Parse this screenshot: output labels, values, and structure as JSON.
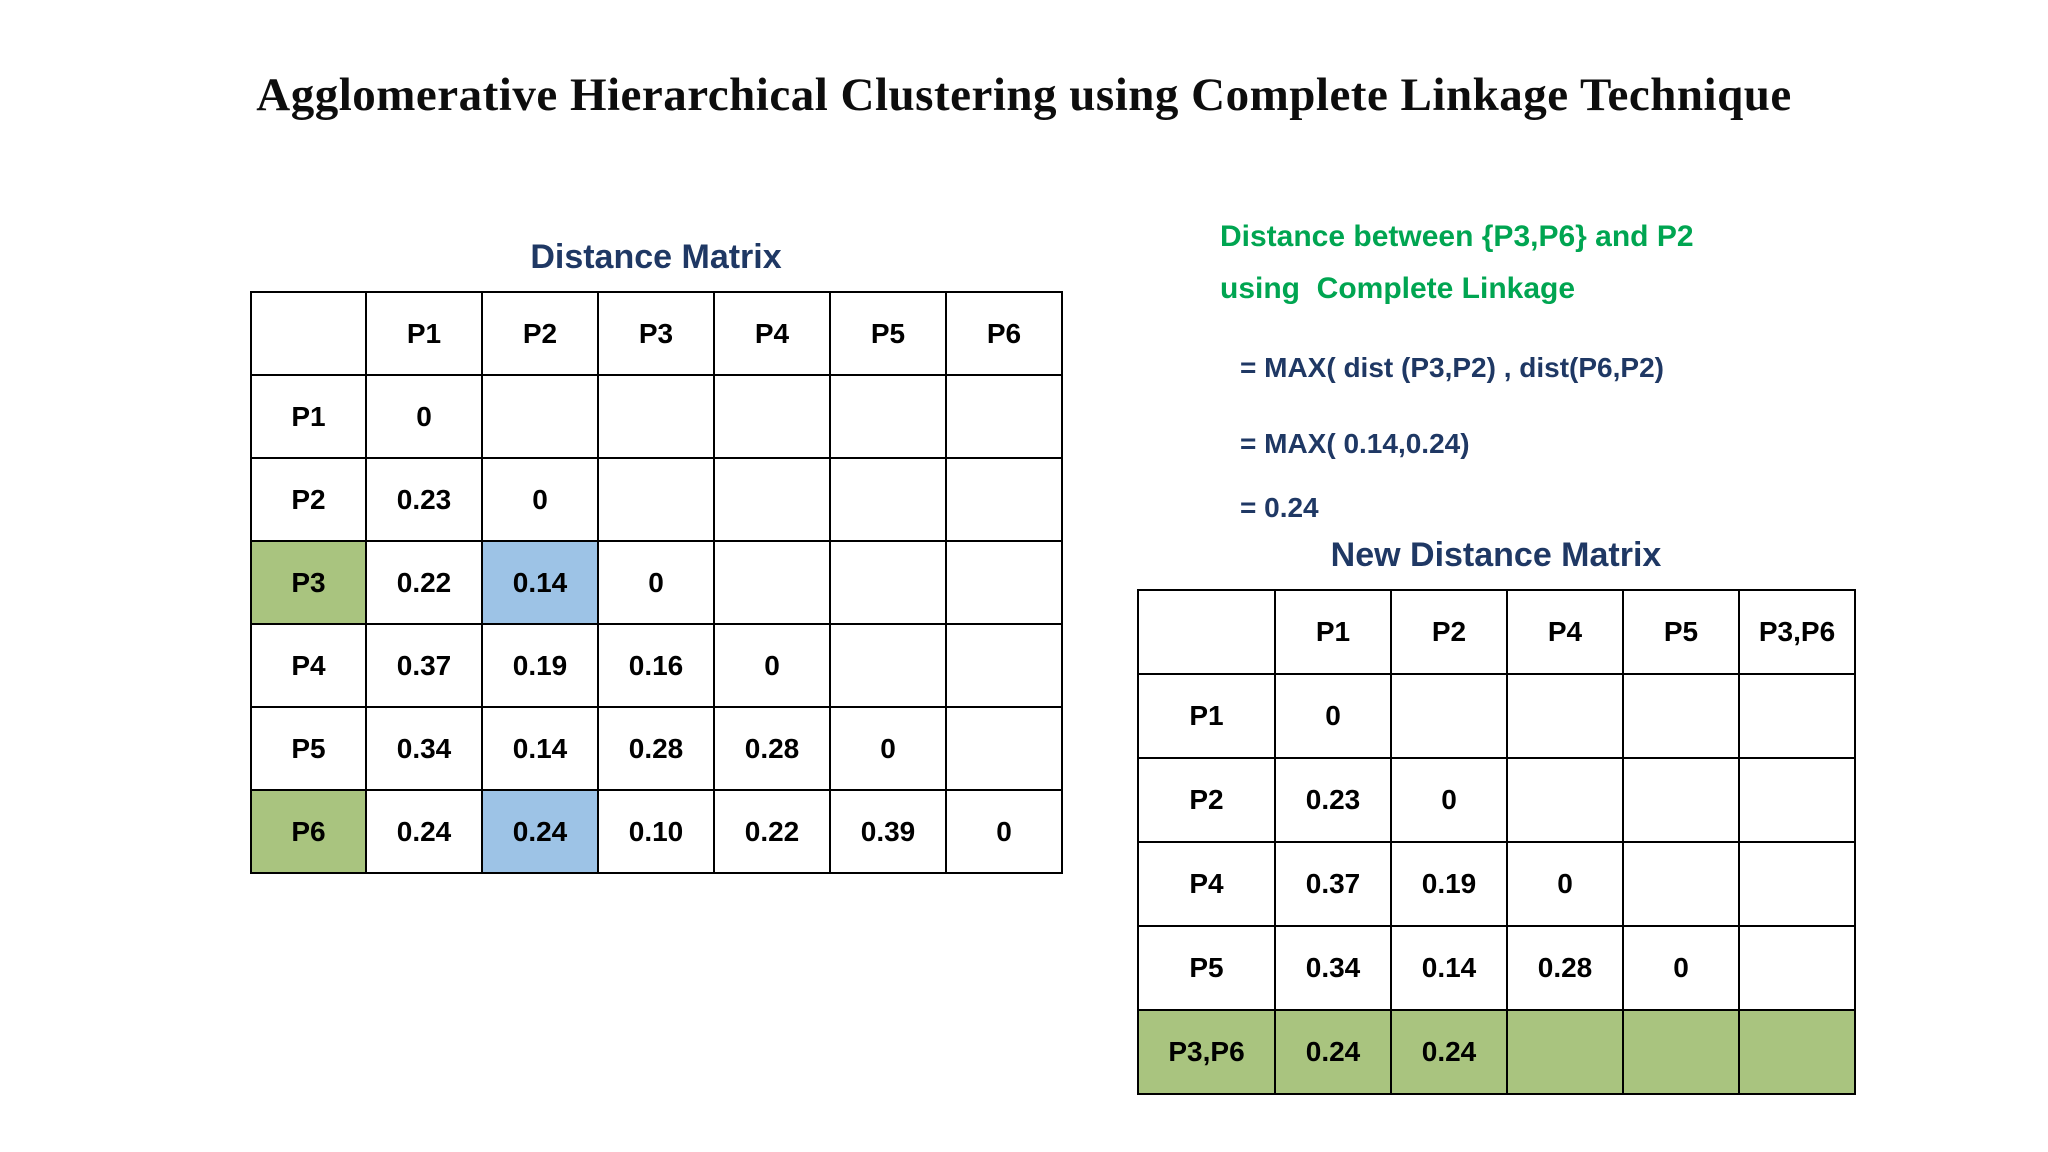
{
  "title": "Agglomerative Hierarchical Clustering using Complete Linkage Technique",
  "colors": {
    "navy": "#1f3864",
    "green_text": "#00a551",
    "green_fill": "#a9c47f",
    "blue_fill": "#9dc3e6",
    "red_text": "#ff0000"
  },
  "annotation": {
    "line1": "Distance between {P3,P6} and P2",
    "line2": "using  Complete Linkage",
    "formula1": "= MAX( dist (P3,P2) , dist(P6,P2)",
    "formula2": "= MAX( 0.14,0.24)",
    "formula3": "= 0.24"
  },
  "left_matrix": {
    "title": "Distance Matrix",
    "headers": [
      "",
      "P1",
      "P2",
      "P3",
      "P4",
      "P5",
      "P6"
    ],
    "rows": [
      {
        "label": "P1",
        "cells": [
          {
            "t": "0"
          },
          {},
          {},
          {},
          {},
          {}
        ]
      },
      {
        "label": "P2",
        "cells": [
          {
            "t": "0.23"
          },
          {
            "t": "0"
          },
          {},
          {},
          {},
          {}
        ]
      },
      {
        "label": "P3",
        "label_hl": "green",
        "cells": [
          {
            "t": "0.22"
          },
          {
            "t": "0.14",
            "hl": "blue"
          },
          {
            "t": "0"
          },
          {},
          {},
          {}
        ]
      },
      {
        "label": "P4",
        "cells": [
          {
            "t": "0.37"
          },
          {
            "t": "0.19"
          },
          {
            "t": "0.16"
          },
          {
            "t": "0"
          },
          {},
          {}
        ]
      },
      {
        "label": "P5",
        "cells": [
          {
            "t": "0.34"
          },
          {
            "t": "0.14"
          },
          {
            "t": "0.28"
          },
          {
            "t": "0.28"
          },
          {
            "t": "0"
          },
          {}
        ]
      },
      {
        "label": "P6",
        "label_hl": "green",
        "cells": [
          {
            "t": "0.24"
          },
          {
            "t": "0.24",
            "hl": "blue"
          },
          {
            "t": "0.10"
          },
          {
            "t": "0.22"
          },
          {
            "t": "0.39"
          },
          {
            "t": "0"
          }
        ]
      }
    ]
  },
  "right_matrix": {
    "title": "New Distance Matrix",
    "headers": [
      "",
      "P1",
      "P2",
      "P4",
      "P5",
      "P3,P6"
    ],
    "rows": [
      {
        "label": "P1",
        "cells": [
          {
            "t": "0"
          },
          {},
          {},
          {},
          {}
        ]
      },
      {
        "label": "P2",
        "cells": [
          {
            "t": "0.23"
          },
          {
            "t": "0"
          },
          {},
          {},
          {}
        ]
      },
      {
        "label": "P4",
        "cells": [
          {
            "t": "0.37"
          },
          {
            "t": "0.19"
          },
          {
            "t": "0"
          },
          {},
          {}
        ]
      },
      {
        "label": "P5",
        "cells": [
          {
            "t": "0.34"
          },
          {
            "t": "0.14"
          },
          {
            "t": "0.28"
          },
          {
            "t": "0"
          },
          {}
        ]
      },
      {
        "label": "P3,P6",
        "label_hl": "green",
        "cells": [
          {
            "t": "0.24",
            "hl": "green"
          },
          {
            "t": "0.24",
            "hl": "green",
            "txt": "red"
          },
          {
            "hl": "green"
          },
          {
            "hl": "green"
          },
          {
            "hl": "green"
          }
        ]
      }
    ]
  }
}
